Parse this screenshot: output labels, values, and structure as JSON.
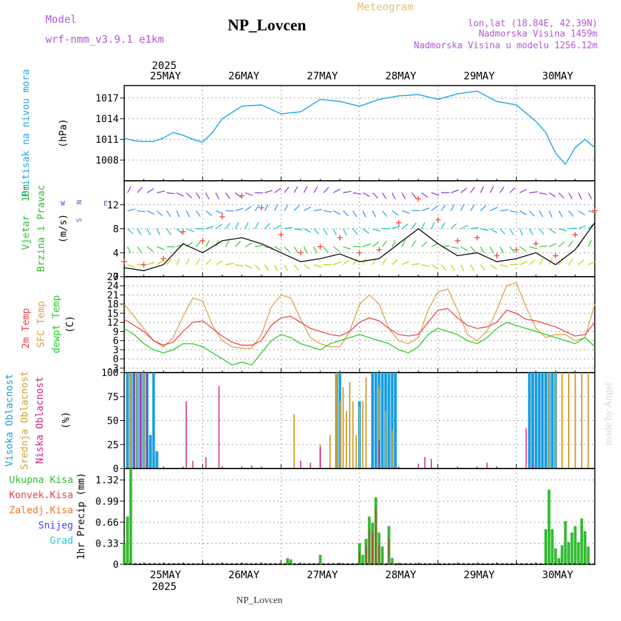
{
  "header": {
    "model_label": "Model",
    "model_name": "wrf-nmm_v3.9.1 e1km",
    "station_title": "NP_Lovcen",
    "meteogram_label": "Meteogram",
    "lonlat": "lon,lat (18.84E, 42.39N)",
    "altitude": "Nadmorska Visina 1459m",
    "model_altitude": "Nadmorska Visina u modelu 1256.12m",
    "footer_station": "NP_Lovcen",
    "watermark": "made by Angel"
  },
  "colors": {
    "pressure": "#22a7e8",
    "wind_speed": "#000000",
    "gusts": "#f04030",
    "t2m": "#e8404a",
    "sfc_temp": "#e0a040",
    "dewpoint": "#22cc22",
    "cloud_high": "#1a9fe0",
    "cloud_mid": "#d4a030",
    "cloud_low": "#cc2288",
    "precip_total": "#33bb33",
    "precip_conv": "#aa5533"
  },
  "time_axis": {
    "year_label": "2025",
    "days": [
      "25MAY",
      "26MAY",
      "27MAY",
      "28MAY",
      "29MAY",
      "30MAY"
    ],
    "day_start_hours": [
      0,
      24,
      48,
      72,
      96,
      120
    ],
    "x_range_hours": [
      -12,
      132
    ]
  },
  "chart_data": [
    {
      "type": "line",
      "panel": "pressure",
      "ylabel_left": "Pritisak na nivou mora",
      "ylabel": "(hPa)",
      "ylim": [
        1005.0,
        1018.8
      ],
      "yticks": [
        1008,
        1011,
        1014,
        1017
      ],
      "grid": true,
      "series": [
        {
          "x": [
            -12,
            -9,
            -6,
            -3,
            0,
            3,
            6,
            9,
            12,
            15,
            18,
            24,
            30,
            36,
            42,
            48,
            54,
            60,
            66,
            72,
            78,
            84,
            90,
            96,
            102,
            108,
            114,
            117,
            120,
            123,
            126,
            129,
            132
          ],
          "values": [
            1011.2,
            1010.8,
            1010.7,
            1010.7,
            1011.2,
            1012.0,
            1011.6,
            1011.0,
            1010.6,
            1012.0,
            1014.0,
            1015.8,
            1016.0,
            1014.7,
            1015.0,
            1016.8,
            1016.5,
            1015.8,
            1016.8,
            1017.3,
            1017.5,
            1016.8,
            1017.6,
            1018.0,
            1016.5,
            1016.0,
            1013.6,
            1012.0,
            1009.0,
            1007.4,
            1009.8,
            1011.0,
            1009.8
          ]
        }
      ]
    },
    {
      "type": "line",
      "panel": "wind",
      "ylabel_left": "10m Vjetar Brzina i Pravac",
      "ylabel": "(m/s)",
      "ylim": [
        0,
        16
      ],
      "yticks": [
        0,
        4,
        8,
        12
      ],
      "grid": true,
      "series": [
        {
          "x": [
            -12,
            -6,
            0,
            6,
            12,
            18,
            24,
            30,
            36,
            42,
            48,
            54,
            60,
            66,
            72,
            78,
            84,
            90,
            96,
            102,
            108,
            114,
            120,
            126,
            132
          ],
          "values": [
            1.5,
            1.0,
            2.0,
            5.5,
            4.0,
            6.0,
            6.5,
            5.5,
            4.0,
            2.5,
            3.0,
            3.8,
            2.5,
            3.0,
            5.5,
            8.0,
            5.5,
            3.5,
            4.0,
            2.5,
            3.0,
            4.0,
            2.0,
            4.5,
            9.0
          ]
        },
        {
          "x": [
            -12,
            -6,
            0,
            6,
            12,
            18,
            24,
            30,
            36,
            42,
            48,
            54,
            60,
            66,
            72,
            78,
            84,
            90,
            96,
            102,
            108,
            114,
            120,
            126,
            132
          ],
          "values": [
            2.5,
            2.0,
            3.0,
            7.5,
            6.0,
            10.0,
            13.5,
            11.5,
            7.0,
            4.0,
            5.0,
            6.5,
            4.0,
            4.5,
            9.0,
            13.0,
            9.5,
            6.0,
            6.5,
            3.5,
            4.5,
            5.5,
            3.5,
            7.0,
            11.0
          ]
        }
      ]
    },
    {
      "type": "line",
      "panel": "temperature",
      "ylabel_left": [
        "2m Temp",
        "SFC Temp",
        "dewpt Temp"
      ],
      "ylabel": "(C)",
      "ylim": [
        -4.5,
        27
      ],
      "yticks": [
        -3,
        0,
        3,
        6,
        9,
        12,
        15,
        18,
        21,
        24,
        27
      ],
      "grid": true,
      "series": [
        {
          "name": "2m Temp",
          "x": [
            -12,
            -9,
            -6,
            -3,
            0,
            3,
            6,
            9,
            12,
            15,
            18,
            21,
            24,
            27,
            30,
            33,
            36,
            39,
            42,
            45,
            48,
            51,
            54,
            57,
            60,
            63,
            66,
            69,
            72,
            75,
            78,
            81,
            84,
            87,
            90,
            93,
            96,
            99,
            102,
            105,
            108,
            111,
            114,
            117,
            120,
            123,
            126,
            129,
            132
          ],
          "values": [
            13,
            11,
            9,
            6,
            4.5,
            5.5,
            9,
            12,
            12.5,
            10,
            7.5,
            5.5,
            4.5,
            4.5,
            6,
            11,
            13.5,
            14,
            12,
            10,
            9,
            8,
            7.5,
            9,
            12,
            13.5,
            12.5,
            10,
            8,
            7.5,
            8,
            12,
            16,
            16.5,
            13.5,
            11,
            10,
            10.5,
            12,
            16,
            15,
            13,
            12.5,
            11.5,
            10.5,
            9,
            7.5,
            8,
            12
          ]
        },
        {
          "name": "SFC Temp",
          "x": [
            -12,
            -9,
            -6,
            -3,
            0,
            3,
            6,
            9,
            12,
            15,
            18,
            21,
            24,
            27,
            30,
            33,
            36,
            39,
            42,
            45,
            48,
            51,
            54,
            57,
            60,
            63,
            66,
            69,
            72,
            75,
            78,
            81,
            84,
            87,
            90,
            93,
            96,
            99,
            102,
            105,
            108,
            111,
            114,
            117,
            120,
            123,
            126,
            129,
            132
          ],
          "values": [
            18,
            14,
            10,
            6,
            4,
            7,
            14,
            20,
            19,
            11,
            6,
            4,
            3.5,
            3.5,
            8,
            17,
            21,
            20,
            13,
            7,
            5,
            4,
            4,
            9,
            18,
            21,
            18,
            10,
            6,
            5,
            7,
            16,
            22,
            23,
            16,
            8,
            6,
            9,
            16,
            24,
            25,
            17,
            10,
            7,
            8,
            8,
            6,
            7,
            18
          ]
        },
        {
          "name": "dewpt Temp",
          "x": [
            -12,
            -9,
            -6,
            -3,
            0,
            3,
            6,
            9,
            12,
            15,
            18,
            21,
            24,
            27,
            30,
            33,
            36,
            39,
            42,
            45,
            48,
            51,
            54,
            57,
            60,
            63,
            66,
            69,
            72,
            75,
            78,
            81,
            84,
            87,
            90,
            93,
            96,
            99,
            102,
            105,
            108,
            111,
            114,
            117,
            120,
            123,
            126,
            129,
            132
          ],
          "values": [
            10,
            8,
            5,
            3,
            2,
            3,
            5,
            5,
            4,
            2,
            0,
            -2,
            -1,
            -2,
            2,
            6,
            8,
            7,
            5,
            4,
            3,
            5,
            6,
            7,
            8,
            7,
            6,
            5,
            3,
            2,
            4,
            8,
            10,
            9,
            8,
            6,
            5,
            7,
            10,
            12,
            11,
            10,
            9,
            8,
            7,
            6,
            5,
            7,
            4
          ]
        }
      ]
    },
    {
      "type": "bar",
      "panel": "clouds",
      "ylabel_left": [
        "Visoka Oblacnost",
        "Srednja Oblacnost",
        "Niska Oblacnost"
      ],
      "ylabel": "(%)",
      "ylim": [
        0,
        100
      ],
      "yticks": [
        0,
        25,
        50,
        75,
        100
      ],
      "grid": true,
      "series": [
        {
          "name": "Visoka Oblacnost",
          "x": [
            -11,
            -10,
            -9,
            -8,
            -7,
            -6,
            -5,
            -4,
            -3,
            -2,
            -1,
            53,
            54,
            55,
            56,
            57,
            58,
            59,
            60,
            64,
            65,
            66,
            67,
            68,
            69,
            70,
            71,
            112,
            113,
            114,
            115,
            116,
            117,
            118,
            119,
            120
          ],
          "values": [
            100,
            100,
            100,
            100,
            100,
            100,
            100,
            35,
            100,
            18,
            0,
            100,
            100,
            0,
            0,
            0,
            0,
            0,
            70,
            100,
            100,
            100,
            100,
            100,
            100,
            100,
            100,
            100,
            100,
            100,
            100,
            100,
            100,
            100,
            100,
            100
          ]
        },
        {
          "name": "Srednja Oblacnost",
          "x": [
            -10,
            -8,
            -6,
            40,
            48,
            51,
            53,
            54,
            55,
            56,
            57,
            58,
            59,
            60,
            61,
            62,
            66,
            68,
            70,
            118,
            120,
            122,
            124,
            126,
            128,
            130
          ],
          "values": [
            100,
            100,
            100,
            57,
            25,
            35,
            100,
            70,
            85,
            60,
            90,
            70,
            35,
            65,
            70,
            95,
            85,
            60,
            40,
            100,
            100,
            100,
            100,
            100,
            100,
            100
          ]
        },
        {
          "name": "Niska Oblacnost",
          "x": [
            -9,
            -7,
            -5,
            7,
            9,
            13,
            17,
            27,
            42,
            45,
            48,
            66,
            78,
            80,
            82,
            99,
            111,
            113
          ],
          "values": [
            100,
            100,
            100,
            70,
            8,
            12,
            86,
            3,
            8,
            6,
            22,
            30,
            5,
            12,
            10,
            6,
            42,
            4
          ]
        }
      ]
    },
    {
      "type": "bar",
      "panel": "precip",
      "ylabel_left": [
        "Ukupna Kisa",
        "Konvek.Kisa",
        "Zaledj.Kisa",
        "Snijeg",
        "Grad"
      ],
      "ylabel": "1hr Precip (mm)",
      "ylim": [
        0,
        1.5
      ],
      "yticks": [
        0,
        0.33,
        0.66,
        0.99,
        1.32
      ],
      "grid": true,
      "series": [
        {
          "name": "Ukupna Kisa",
          "x": [
            -12,
            -11,
            -10,
            38,
            39,
            48,
            60,
            61,
            62,
            63,
            64,
            65,
            66,
            67,
            69,
            70,
            117,
            118,
            119,
            120,
            121,
            122,
            123,
            124,
            125,
            126,
            127,
            128,
            129,
            130,
            131
          ],
          "values": [
            0.33,
            0.75,
            1.5,
            0.1,
            0.08,
            0.15,
            0.33,
            0.15,
            0.4,
            0.75,
            0.65,
            1.05,
            0.5,
            0.28,
            0.6,
            0.1,
            0.55,
            1.17,
            0.55,
            0.25,
            0.1,
            0.3,
            0.68,
            0.35,
            0.5,
            0.6,
            0.35,
            0.72,
            0.52,
            0.28,
            0.0
          ]
        },
        {
          "name": "Konvek.Kisa",
          "x": [
            38,
            60,
            62,
            63,
            64,
            65,
            66,
            69
          ],
          "values": [
            0.06,
            0.2,
            0.3,
            0.55,
            0.5,
            0.9,
            0.3,
            0.4
          ]
        }
      ]
    }
  ]
}
